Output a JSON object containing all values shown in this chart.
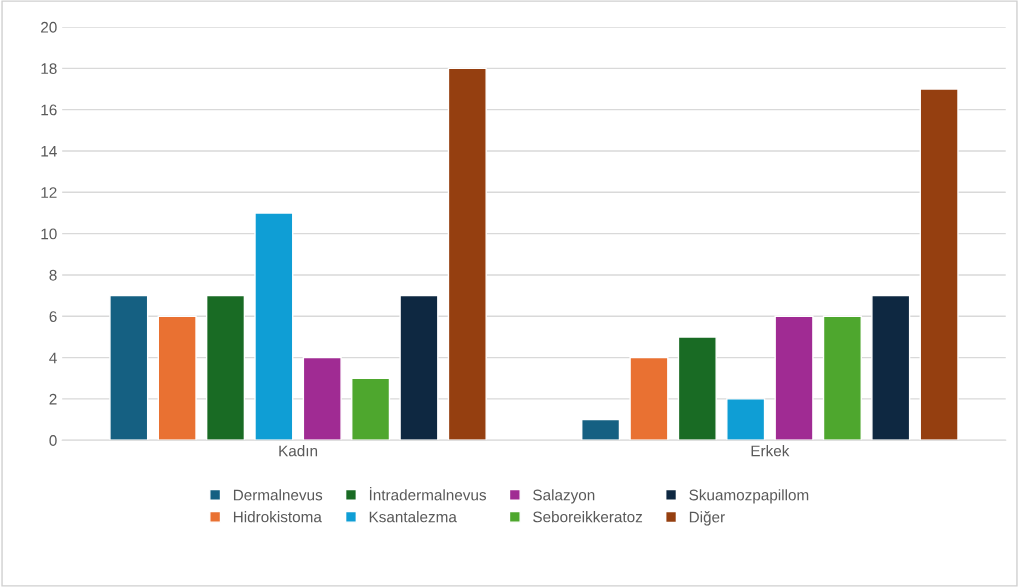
{
  "chart_data": {
    "type": "bar",
    "categories": [
      "Kadın",
      "Erkek"
    ],
    "series": [
      {
        "name": "Dermalnevus",
        "color": "#156082",
        "values": [
          7,
          1
        ]
      },
      {
        "name": "Hidrokistoma",
        "color": "#e97132",
        "values": [
          6,
          4
        ]
      },
      {
        "name": "İntradermalnevus",
        "color": "#196b24",
        "values": [
          7,
          5
        ]
      },
      {
        "name": "Ksantalezma",
        "color": "#0f9ed5",
        "values": [
          11,
          2
        ]
      },
      {
        "name": "Salazyon",
        "color": "#a02b93",
        "values": [
          4,
          6
        ]
      },
      {
        "name": "Seboreikkeratoz",
        "color": "#4ea72e",
        "values": [
          3,
          6
        ]
      },
      {
        "name": "Skuamozpapillom",
        "color": "#0e2841",
        "values": [
          7,
          7
        ]
      },
      {
        "name": "Diğer",
        "color": "#953f10",
        "values": [
          18,
          17
        ]
      }
    ],
    "ylim": [
      0,
      20
    ],
    "yticks": [
      0,
      2,
      4,
      6,
      8,
      10,
      12,
      14,
      16,
      18,
      20
    ],
    "grid": "y",
    "legend": "bottom"
  }
}
